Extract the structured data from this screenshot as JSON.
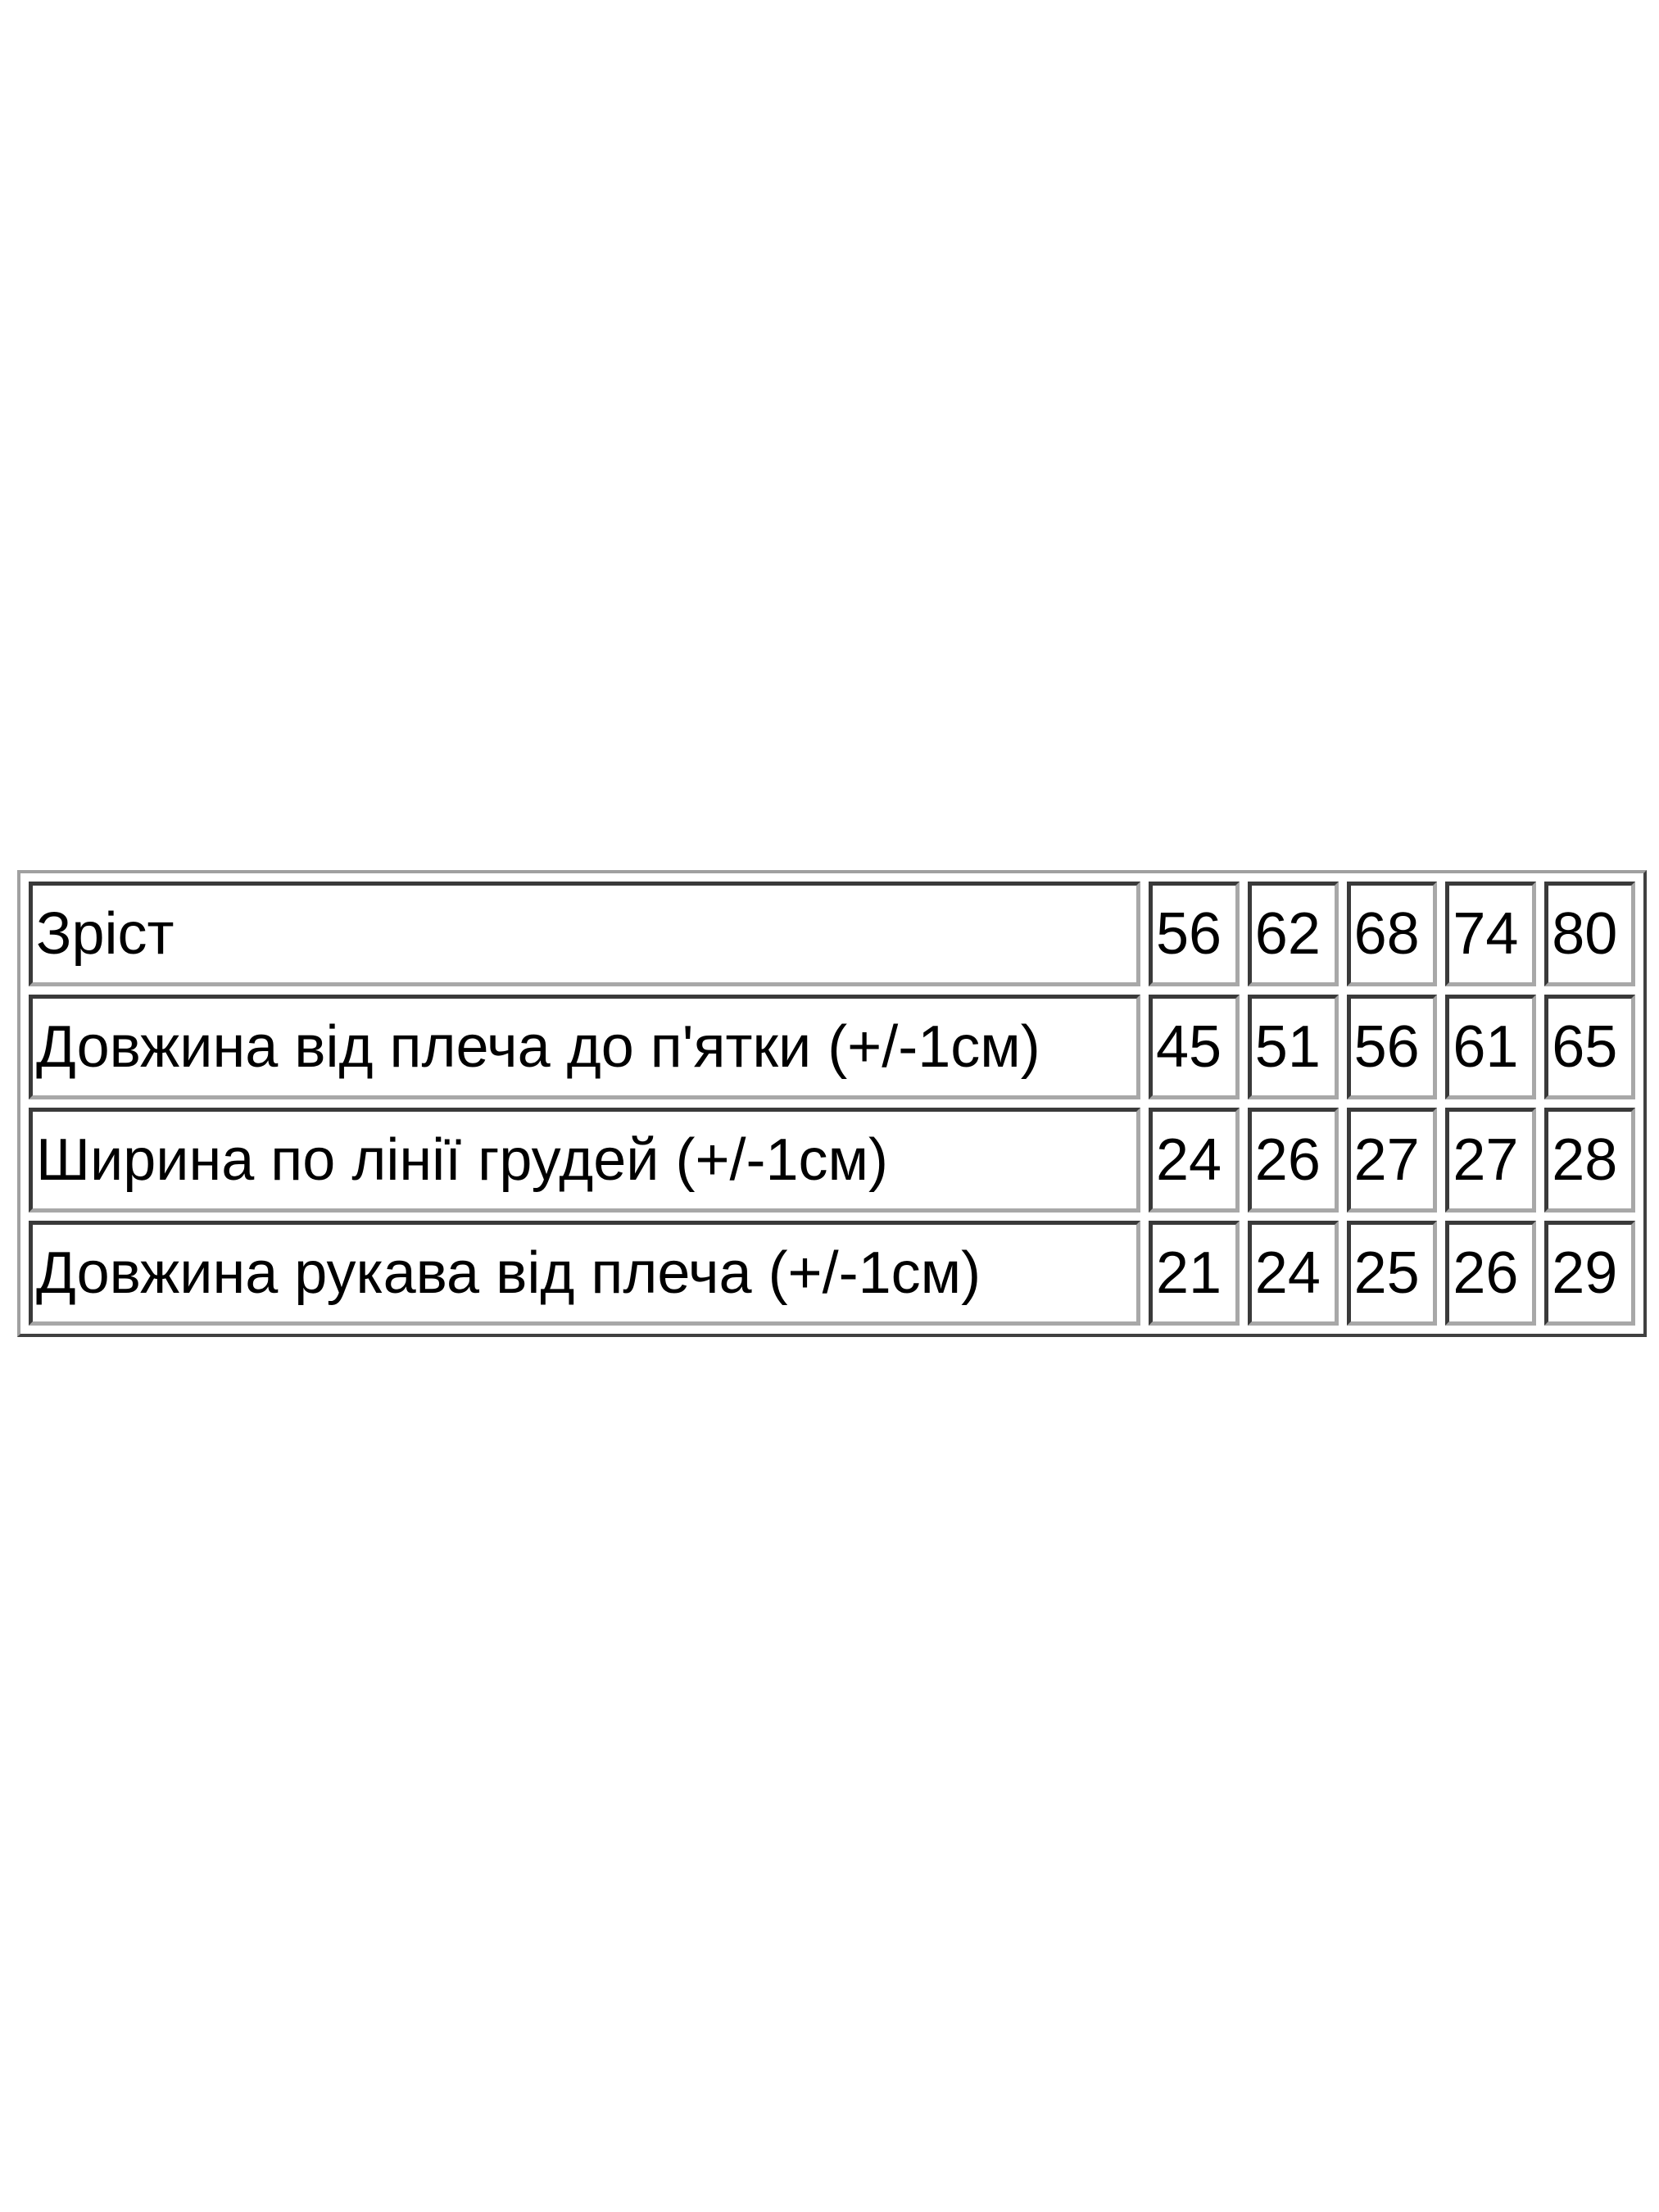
{
  "table": {
    "rows": [
      {
        "label": "Зріст",
        "values": [
          "56",
          "62",
          "68",
          "74",
          "80"
        ]
      },
      {
        "label": "Довжина від плеча до п'ятки (+/-1см)",
        "values": [
          "45",
          "51",
          "56",
          "61",
          "65"
        ]
      },
      {
        "label": "Ширина по лінії грудей (+/-1см)",
        "values": [
          "24",
          "26",
          "27",
          "27",
          "28"
        ]
      },
      {
        "label": "Довжина рукава від плеча (+/-1см)",
        "values": [
          "21",
          "24",
          "25",
          "26",
          "29"
        ]
      }
    ]
  }
}
